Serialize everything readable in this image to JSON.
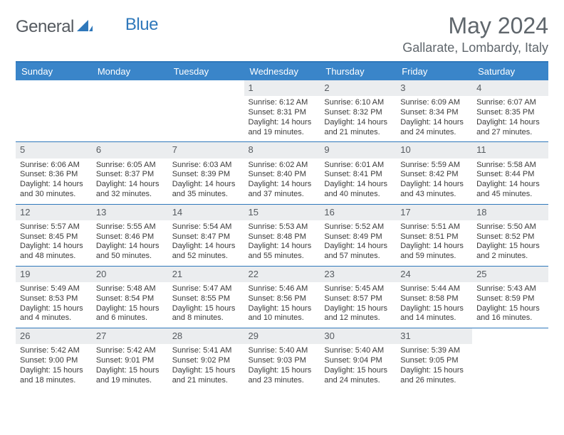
{
  "brand": {
    "part1": "General",
    "part2": "Blue"
  },
  "title": "May 2024",
  "location": "Gallarate, Lombardy, Italy",
  "header_bg": "#3a85c9",
  "rule_color": "#2f78bb",
  "daybar_bg": "#ebedef",
  "weekdays": [
    "Sunday",
    "Monday",
    "Tuesday",
    "Wednesday",
    "Thursday",
    "Friday",
    "Saturday"
  ],
  "weeks": [
    [
      null,
      null,
      null,
      {
        "n": "1",
        "sr": "6:12 AM",
        "ss": "8:31 PM",
        "dl": "14 hours and 19 minutes."
      },
      {
        "n": "2",
        "sr": "6:10 AM",
        "ss": "8:32 PM",
        "dl": "14 hours and 21 minutes."
      },
      {
        "n": "3",
        "sr": "6:09 AM",
        "ss": "8:34 PM",
        "dl": "14 hours and 24 minutes."
      },
      {
        "n": "4",
        "sr": "6:07 AM",
        "ss": "8:35 PM",
        "dl": "14 hours and 27 minutes."
      }
    ],
    [
      {
        "n": "5",
        "sr": "6:06 AM",
        "ss": "8:36 PM",
        "dl": "14 hours and 30 minutes."
      },
      {
        "n": "6",
        "sr": "6:05 AM",
        "ss": "8:37 PM",
        "dl": "14 hours and 32 minutes."
      },
      {
        "n": "7",
        "sr": "6:03 AM",
        "ss": "8:39 PM",
        "dl": "14 hours and 35 minutes."
      },
      {
        "n": "8",
        "sr": "6:02 AM",
        "ss": "8:40 PM",
        "dl": "14 hours and 37 minutes."
      },
      {
        "n": "9",
        "sr": "6:01 AM",
        "ss": "8:41 PM",
        "dl": "14 hours and 40 minutes."
      },
      {
        "n": "10",
        "sr": "5:59 AM",
        "ss": "8:42 PM",
        "dl": "14 hours and 43 minutes."
      },
      {
        "n": "11",
        "sr": "5:58 AM",
        "ss": "8:44 PM",
        "dl": "14 hours and 45 minutes."
      }
    ],
    [
      {
        "n": "12",
        "sr": "5:57 AM",
        "ss": "8:45 PM",
        "dl": "14 hours and 48 minutes."
      },
      {
        "n": "13",
        "sr": "5:55 AM",
        "ss": "8:46 PM",
        "dl": "14 hours and 50 minutes."
      },
      {
        "n": "14",
        "sr": "5:54 AM",
        "ss": "8:47 PM",
        "dl": "14 hours and 52 minutes."
      },
      {
        "n": "15",
        "sr": "5:53 AM",
        "ss": "8:48 PM",
        "dl": "14 hours and 55 minutes."
      },
      {
        "n": "16",
        "sr": "5:52 AM",
        "ss": "8:49 PM",
        "dl": "14 hours and 57 minutes."
      },
      {
        "n": "17",
        "sr": "5:51 AM",
        "ss": "8:51 PM",
        "dl": "14 hours and 59 minutes."
      },
      {
        "n": "18",
        "sr": "5:50 AM",
        "ss": "8:52 PM",
        "dl": "15 hours and 2 minutes."
      }
    ],
    [
      {
        "n": "19",
        "sr": "5:49 AM",
        "ss": "8:53 PM",
        "dl": "15 hours and 4 minutes."
      },
      {
        "n": "20",
        "sr": "5:48 AM",
        "ss": "8:54 PM",
        "dl": "15 hours and 6 minutes."
      },
      {
        "n": "21",
        "sr": "5:47 AM",
        "ss": "8:55 PM",
        "dl": "15 hours and 8 minutes."
      },
      {
        "n": "22",
        "sr": "5:46 AM",
        "ss": "8:56 PM",
        "dl": "15 hours and 10 minutes."
      },
      {
        "n": "23",
        "sr": "5:45 AM",
        "ss": "8:57 PM",
        "dl": "15 hours and 12 minutes."
      },
      {
        "n": "24",
        "sr": "5:44 AM",
        "ss": "8:58 PM",
        "dl": "15 hours and 14 minutes."
      },
      {
        "n": "25",
        "sr": "5:43 AM",
        "ss": "8:59 PM",
        "dl": "15 hours and 16 minutes."
      }
    ],
    [
      {
        "n": "26",
        "sr": "5:42 AM",
        "ss": "9:00 PM",
        "dl": "15 hours and 18 minutes."
      },
      {
        "n": "27",
        "sr": "5:42 AM",
        "ss": "9:01 PM",
        "dl": "15 hours and 19 minutes."
      },
      {
        "n": "28",
        "sr": "5:41 AM",
        "ss": "9:02 PM",
        "dl": "15 hours and 21 minutes."
      },
      {
        "n": "29",
        "sr": "5:40 AM",
        "ss": "9:03 PM",
        "dl": "15 hours and 23 minutes."
      },
      {
        "n": "30",
        "sr": "5:40 AM",
        "ss": "9:04 PM",
        "dl": "15 hours and 24 minutes."
      },
      {
        "n": "31",
        "sr": "5:39 AM",
        "ss": "9:05 PM",
        "dl": "15 hours and 26 minutes."
      },
      null
    ]
  ],
  "labels": {
    "sunrise": "Sunrise: ",
    "sunset": "Sunset: ",
    "daylight": "Daylight: "
  }
}
